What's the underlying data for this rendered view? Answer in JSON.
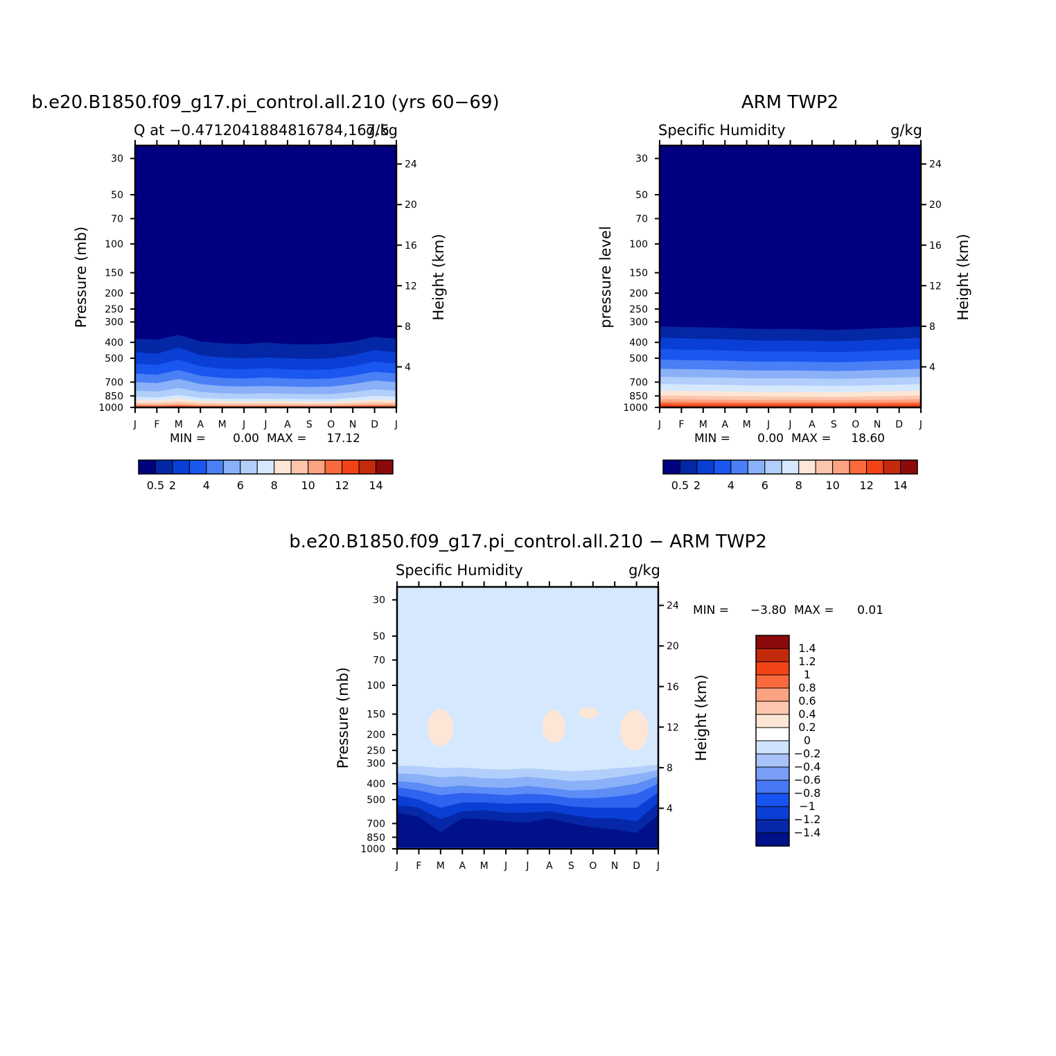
{
  "colors": {
    "model_levels": [
      "#000080",
      "#0427a6",
      "#0a3fd5",
      "#1a56f0",
      "#4a7ff5",
      "#8ab0f8",
      "#b2cffb",
      "#d6e8fd",
      "#fde6d6",
      "#fcc6ac",
      "#fca381",
      "#fa6a3c",
      "#f24317",
      "#c42a0c",
      "#8c0a0a"
    ],
    "diff_levels": [
      "#00118a",
      "#0627a8",
      "#0a3fd5",
      "#1753f0",
      "#4677f4",
      "#7a9ff7",
      "#a7c3fa",
      "#cfe3fd",
      "#ffffff",
      "#fde6d6",
      "#fcc6ac",
      "#fca381",
      "#fa6a3c",
      "#f24317",
      "#c42a0c",
      "#8c0a0a"
    ]
  },
  "chart_data": [
    {
      "type": "heatmap",
      "title": "b.e20.B1850.f09_g17.pi_control.all.210 (yrs 60−69)",
      "subtitle_left": "Q at −0.4712041884816784,167.5",
      "subtitle_right": "g/kg",
      "ylabel": "Pressure (mb)",
      "ylabel_right": "Height (km)",
      "x_ticks": [
        "J",
        "F",
        "M",
        "A",
        "M",
        "J",
        "J",
        "A",
        "S",
        "O",
        "N",
        "D",
        "J"
      ],
      "y_ticks": [
        "30",
        "50",
        "70",
        "100",
        "150",
        "200",
        "250",
        "300",
        "400",
        "500",
        "700",
        "850",
        "1000"
      ],
      "y_ticks_right": [
        "24",
        "20",
        "16",
        "12",
        "8",
        "4"
      ],
      "min_label": "MIN =",
      "min_value": "0.00",
      "max_label": "MAX =",
      "max_value": "17.12",
      "colorbar_labels": [
        "0.5",
        "2",
        "4",
        "6",
        "8",
        "10",
        "12",
        "14"
      ],
      "ylim": [
        1000,
        25
      ],
      "scale": "log",
      "months": [
        0,
        1,
        2,
        3,
        4,
        5,
        6,
        7,
        8,
        9,
        10,
        11,
        12
      ],
      "level_boundaries_mb": [
        [
          380,
          460,
          540,
          620,
          700,
          790,
          860,
          900,
          935,
          960,
          975,
          985,
          995
        ],
        [
          385,
          470,
          550,
          630,
          710,
          800,
          870,
          905,
          938,
          962,
          977,
          987,
          996
        ],
        [
          360,
          430,
          510,
          590,
          670,
          760,
          840,
          885,
          925,
          952,
          970,
          982,
          993
        ],
        [
          395,
          480,
          560,
          640,
          720,
          805,
          875,
          910,
          940,
          964,
          978,
          988,
          996
        ],
        [
          405,
          495,
          580,
          660,
          740,
          820,
          885,
          915,
          945,
          967,
          980,
          990,
          997
        ],
        [
          410,
          500,
          585,
          665,
          745,
          825,
          888,
          918,
          947,
          968,
          981,
          990,
          997
        ],
        [
          400,
          495,
          575,
          655,
          740,
          820,
          885,
          915,
          945,
          967,
          980,
          990,
          997
        ],
        [
          410,
          500,
          585,
          665,
          745,
          825,
          888,
          918,
          947,
          968,
          981,
          990,
          997
        ],
        [
          412,
          505,
          590,
          670,
          750,
          830,
          892,
          921,
          949,
          969,
          982,
          991,
          997
        ],
        [
          408,
          500,
          585,
          665,
          745,
          828,
          890,
          920,
          948,
          968,
          981,
          990,
          997
        ],
        [
          395,
          480,
          560,
          640,
          720,
          805,
          875,
          910,
          940,
          964,
          978,
          988,
          996
        ],
        [
          370,
          445,
          525,
          605,
          685,
          775,
          850,
          895,
          930,
          957,
          974,
          985,
          995
        ],
        [
          380,
          460,
          540,
          620,
          700,
          790,
          860,
          900,
          935,
          960,
          975,
          985,
          995
        ]
      ]
    },
    {
      "type": "heatmap",
      "title": "ARM TWP2",
      "subtitle_left": "Specific Humidity",
      "subtitle_right": "g/kg",
      "ylabel": "pressure level",
      "ylabel_right": "Height (km)",
      "x_ticks": [
        "J",
        "F",
        "M",
        "A",
        "M",
        "J",
        "J",
        "A",
        "S",
        "O",
        "N",
        "D",
        "J"
      ],
      "y_ticks": [
        "30",
        "50",
        "70",
        "100",
        "150",
        "200",
        "250",
        "300",
        "400",
        "500",
        "700",
        "850",
        "1000"
      ],
      "y_ticks_right": [
        "24",
        "20",
        "16",
        "12",
        "8",
        "4"
      ],
      "min_label": "MIN =",
      "min_value": "0.00",
      "max_label": "MAX =",
      "max_value": "18.60",
      "colorbar_labels": [
        "0.5",
        "2",
        "4",
        "6",
        "8",
        "10",
        "12",
        "14"
      ],
      "ylim": [
        1000,
        25
      ],
      "scale": "log",
      "months": [
        0,
        1,
        2,
        3,
        4,
        5,
        6,
        7,
        8,
        9,
        10,
        11,
        12
      ],
      "level_boundaries_mb": [
        [
          320,
          375,
          440,
          510,
          580,
          650,
          720,
          790,
          845,
          890,
          930,
          960,
          985
        ],
        [
          322,
          378,
          443,
          513,
          583,
          653,
          723,
          793,
          848,
          893,
          932,
          962,
          986
        ],
        [
          324,
          380,
          445,
          515,
          585,
          655,
          725,
          795,
          850,
          895,
          933,
          963,
          986
        ],
        [
          326,
          383,
          448,
          518,
          588,
          658,
          728,
          798,
          853,
          897,
          934,
          963,
          987
        ],
        [
          330,
          388,
          453,
          523,
          593,
          663,
          733,
          802,
          856,
          900,
          936,
          964,
          987
        ],
        [
          332,
          390,
          455,
          525,
          595,
          665,
          735,
          804,
          858,
          901,
          937,
          965,
          987
        ],
        [
          331,
          389,
          454,
          524,
          594,
          664,
          734,
          803,
          857,
          900,
          936,
          964,
          987
        ],
        [
          333,
          391,
          456,
          526,
          596,
          666,
          736,
          805,
          859,
          902,
          937,
          965,
          988
        ],
        [
          336,
          394,
          459,
          529,
          599,
          669,
          739,
          808,
          861,
          903,
          938,
          966,
          988
        ],
        [
          333,
          391,
          456,
          526,
          596,
          666,
          736,
          805,
          859,
          902,
          937,
          965,
          988
        ],
        [
          328,
          385,
          450,
          520,
          590,
          660,
          730,
          800,
          855,
          898,
          935,
          964,
          987
        ],
        [
          325,
          381,
          446,
          516,
          586,
          656,
          726,
          796,
          851,
          895,
          933,
          963,
          986
        ],
        [
          320,
          375,
          440,
          510,
          580,
          650,
          720,
          790,
          845,
          890,
          930,
          960,
          985
        ]
      ]
    },
    {
      "type": "heatmap",
      "title": "b.e20.B1850.f09_g17.pi_control.all.210 − ARM TWP2",
      "subtitle_left": "Specific Humidity",
      "subtitle_right": "g/kg",
      "ylabel": "Pressure (mb)",
      "ylabel_right": "Height (km)",
      "x_ticks": [
        "J",
        "F",
        "M",
        "A",
        "M",
        "J",
        "J",
        "A",
        "S",
        "O",
        "N",
        "D",
        "J"
      ],
      "y_ticks": [
        "30",
        "50",
        "70",
        "100",
        "150",
        "200",
        "250",
        "300",
        "400",
        "500",
        "700",
        "850",
        "1000"
      ],
      "y_ticks_right": [
        "24",
        "20",
        "16",
        "12",
        "8",
        "4"
      ],
      "min_label": "MIN =",
      "min_value": "−3.80",
      "max_label": "MAX =",
      "max_value": "0.01",
      "colorbar_labels": [
        "1.4",
        "1.2",
        "1",
        "0.8",
        "0.6",
        "0.4",
        "0.2",
        "0",
        "−0.2",
        "−0.4",
        "−0.6",
        "−0.8",
        "−1",
        "−1.2",
        "−1.4"
      ],
      "ylim": [
        1000,
        25
      ],
      "scale": "log",
      "months": [
        0,
        1,
        2,
        3,
        4,
        5,
        6,
        7,
        8,
        9,
        10,
        11,
        12
      ],
      "level_boundaries_mb": [
        [
          310,
          345,
          385,
          420,
          470,
          540,
          600
        ],
        [
          312,
          350,
          395,
          440,
          500,
          560,
          640
        ],
        [
          320,
          365,
          420,
          470,
          560,
          660,
          790
        ],
        [
          318,
          360,
          410,
          455,
          520,
          590,
          650
        ],
        [
          325,
          370,
          420,
          460,
          520,
          580,
          660
        ],
        [
          328,
          372,
          425,
          470,
          530,
          600,
          680
        ],
        [
          322,
          362,
          412,
          460,
          525,
          600,
          690
        ],
        [
          328,
          372,
          425,
          468,
          525,
          590,
          650
        ],
        [
          336,
          385,
          440,
          490,
          550,
          620,
          700
        ],
        [
          330,
          380,
          435,
          490,
          560,
          650,
          740
        ],
        [
          322,
          365,
          420,
          480,
          560,
          650,
          760
        ],
        [
          315,
          350,
          400,
          460,
          560,
          680,
          800
        ],
        [
          305,
          330,
          360,
          400,
          450,
          520,
          620
        ]
      ],
      "features_mb": {
        "positive_blobs": [
          {
            "month": 2.0,
            "p_top": 140,
            "p_bottom": 235
          },
          {
            "month": 7.2,
            "p_top": 142,
            "p_bottom": 225
          },
          {
            "month": 8.8,
            "p_top": 137,
            "p_bottom": 160
          },
          {
            "month": 10.9,
            "p_top": 142,
            "p_bottom": 250
          }
        ]
      }
    }
  ]
}
